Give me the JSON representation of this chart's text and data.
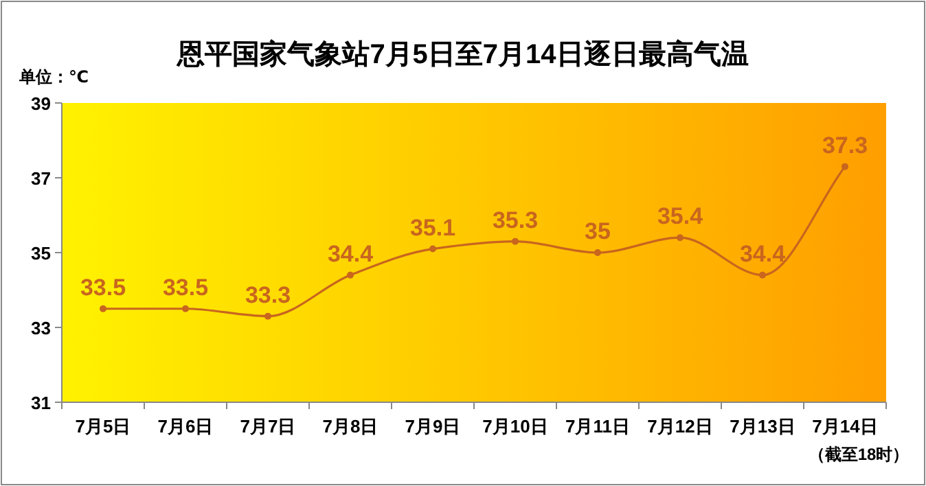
{
  "chart_data": {
    "type": "line",
    "title": "恩平国家气象站7月5日至7月14日逐日最高气温",
    "ylabel": "单位：℃",
    "categories": [
      "7月5日",
      "7月6日",
      "7月7日",
      "7月8日",
      "7月9日",
      "7月10日",
      "7月11日",
      "7月12日",
      "7月13日",
      "7月14日"
    ],
    "series": [
      {
        "color": "#c8651e",
        "values": [
          33.5,
          33.5,
          33.3,
          34.4,
          35.1,
          35.3,
          35,
          35.4,
          34.4,
          37.3
        ]
      }
    ],
    "ylim": [
      31,
      39
    ],
    "yticks": [
      31,
      33,
      35,
      37,
      39
    ],
    "data_labels": true,
    "marker": "circle",
    "annotations": [
      "（截至18时）"
    ]
  }
}
